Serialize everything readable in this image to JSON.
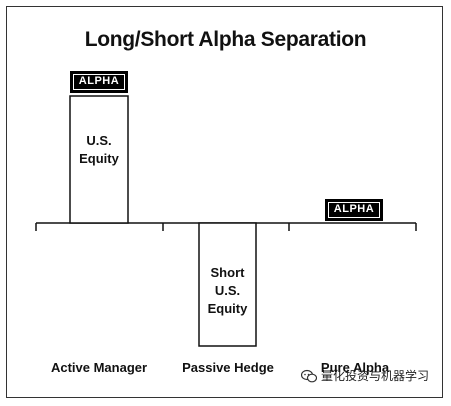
{
  "title": "Long/Short Alpha Separation",
  "active": {
    "tag": "ALPHA",
    "box_line1": "U.S.",
    "box_line2": "Equity",
    "category": "Active Manager"
  },
  "hedge": {
    "box_line1": "Short",
    "box_line2": "U.S.",
    "box_line3": "Equity",
    "category": "Passive Hedge"
  },
  "pure": {
    "tag": "ALPHA",
    "category": "Pure Alpha"
  },
  "watermark": {
    "icon": "chat-bubble-icon",
    "text": "量化投资与机器学习"
  }
}
